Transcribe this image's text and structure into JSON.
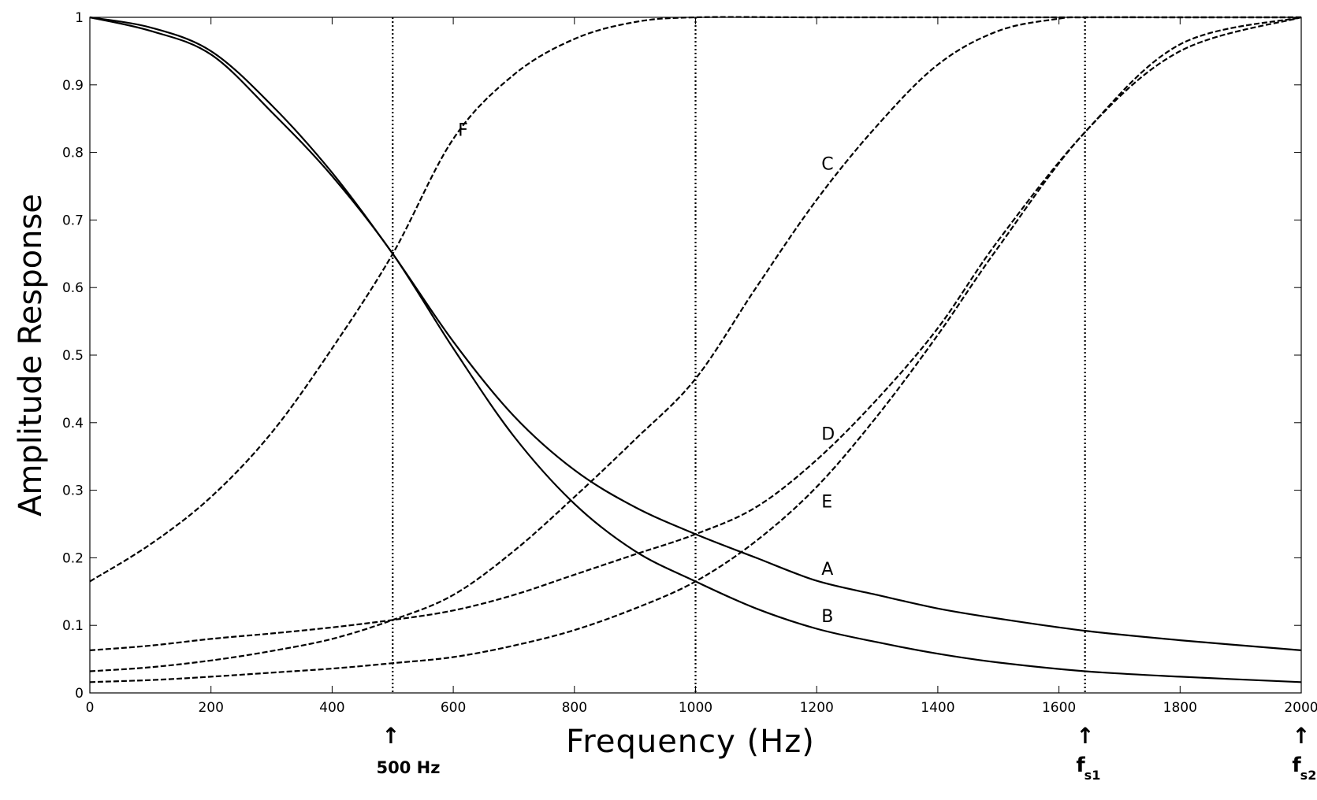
{
  "chart_data": {
    "type": "line",
    "xlabel": "Frequency (Hz)",
    "ylabel": "Amplitude Response",
    "xlim": [
      0,
      2000
    ],
    "ylim": [
      0,
      1
    ],
    "xticks": [
      0,
      200,
      400,
      600,
      800,
      1000,
      1200,
      1400,
      1600,
      1800,
      2000
    ],
    "yticks": [
      0,
      0.1,
      0.2,
      0.3,
      0.4,
      0.5,
      0.6,
      0.7,
      0.8,
      0.9,
      1
    ],
    "ytick_labels": [
      "0",
      "0.1",
      "0.2",
      "0.3",
      "0.4",
      "0.5",
      "0.6",
      "0.7",
      "0.8",
      "0.9",
      "1"
    ],
    "grid": false,
    "vertical_markers": [
      500,
      1000,
      1643
    ],
    "annotations": {
      "marker_500": "500 Hz",
      "fs1_main": "f",
      "fs1_sub": "s1",
      "fs2_main": "f",
      "fs2_sub": "s2",
      "arrow": "↑"
    },
    "series": [
      {
        "name": "A",
        "style": "solid",
        "label_at": [
          1200,
          0.17
        ],
        "x": [
          0,
          100,
          200,
          300,
          400,
          500,
          600,
          700,
          800,
          900,
          1000,
          1100,
          1200,
          1300,
          1400,
          1500,
          1643,
          1800,
          2000
        ],
        "y": [
          1.0,
          0.985,
          0.95,
          0.87,
          0.77,
          0.65,
          0.52,
          0.41,
          0.33,
          0.275,
          0.235,
          0.2,
          0.166,
          0.145,
          0.125,
          0.11,
          0.092,
          0.078,
          0.063
        ]
      },
      {
        "name": "B",
        "style": "solid",
        "label_at": [
          1200,
          0.1
        ],
        "x": [
          0,
          100,
          200,
          300,
          400,
          500,
          600,
          700,
          800,
          900,
          1000,
          1100,
          1200,
          1300,
          1400,
          1500,
          1643,
          1800,
          2000
        ],
        "y": [
          1.0,
          0.98,
          0.945,
          0.86,
          0.765,
          0.65,
          0.51,
          0.38,
          0.28,
          0.21,
          0.165,
          0.125,
          0.095,
          0.075,
          0.058,
          0.045,
          0.032,
          0.024,
          0.016
        ]
      },
      {
        "name": "C",
        "style": "dashed",
        "label_at": [
          1200,
          0.77
        ],
        "x": [
          0,
          100,
          200,
          300,
          400,
          500,
          600,
          700,
          800,
          900,
          1000,
          1100,
          1200,
          1300,
          1400,
          1500,
          1600,
          1643,
          1800,
          2000
        ],
        "y": [
          0.032,
          0.038,
          0.048,
          0.062,
          0.08,
          0.108,
          0.145,
          0.21,
          0.29,
          0.375,
          0.465,
          0.6,
          0.73,
          0.84,
          0.93,
          0.98,
          0.998,
          1.0,
          1.0,
          1.0
        ]
      },
      {
        "name": "D",
        "style": "dashed",
        "label_at": [
          1200,
          0.37
        ],
        "x": [
          0,
          100,
          200,
          300,
          400,
          500,
          600,
          700,
          800,
          900,
          1000,
          1100,
          1200,
          1300,
          1400,
          1500,
          1643,
          1800,
          2000
        ],
        "y": [
          0.063,
          0.07,
          0.08,
          0.088,
          0.097,
          0.108,
          0.122,
          0.145,
          0.175,
          0.205,
          0.235,
          0.275,
          0.345,
          0.435,
          0.54,
          0.67,
          0.83,
          0.96,
          1.0
        ]
      },
      {
        "name": "E",
        "style": "dashed",
        "label_at": [
          1200,
          0.27
        ],
        "x": [
          0,
          100,
          200,
          300,
          400,
          500,
          600,
          700,
          800,
          900,
          1000,
          1100,
          1200,
          1300,
          1400,
          1500,
          1643,
          1800,
          2000
        ],
        "y": [
          0.016,
          0.019,
          0.024,
          0.03,
          0.036,
          0.044,
          0.053,
          0.07,
          0.093,
          0.125,
          0.165,
          0.225,
          0.305,
          0.41,
          0.53,
          0.66,
          0.83,
          0.95,
          1.0
        ]
      },
      {
        "name": "F",
        "style": "dashed",
        "label_at": [
          600,
          0.82
        ],
        "x": [
          0,
          100,
          200,
          300,
          400,
          500,
          600,
          700,
          800,
          900,
          1000,
          1200,
          1500,
          1800,
          2000
        ],
        "y": [
          0.165,
          0.22,
          0.29,
          0.385,
          0.51,
          0.65,
          0.82,
          0.915,
          0.968,
          0.993,
          1.0,
          1.0,
          1.0,
          1.0,
          1.0
        ]
      }
    ]
  }
}
